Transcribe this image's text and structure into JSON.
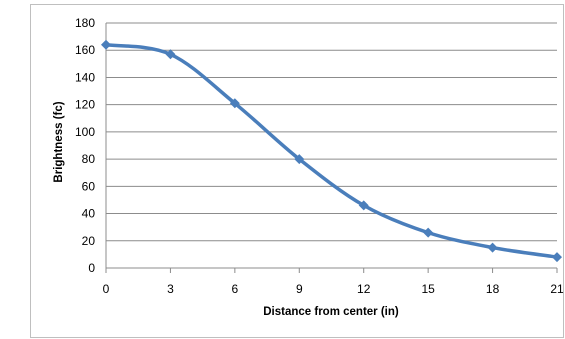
{
  "chart_data": {
    "type": "line",
    "title": "",
    "xlabel": "Distance from center (in)",
    "ylabel": "Brightness (fc)",
    "x": [
      0,
      3,
      6,
      9,
      12,
      15,
      18,
      21
    ],
    "series": [
      {
        "values": [
          164,
          157,
          121,
          80,
          46,
          26,
          15,
          8
        ]
      }
    ],
    "xlim": [
      0,
      21
    ],
    "ylim": [
      0,
      180
    ],
    "x_ticks": [
      "0",
      "3",
      "6",
      "9",
      "12",
      "15",
      "18",
      "21"
    ],
    "y_ticks": [
      "0",
      "20",
      "40",
      "60",
      "80",
      "100",
      "120",
      "140",
      "160",
      "180"
    ],
    "grid": "horizontal",
    "legend": "none",
    "colors": {
      "series": "#4a7ebb",
      "grid": "#8c8c8c",
      "axis": "#8c8c8c",
      "frame": "#bfbfbf"
    }
  }
}
